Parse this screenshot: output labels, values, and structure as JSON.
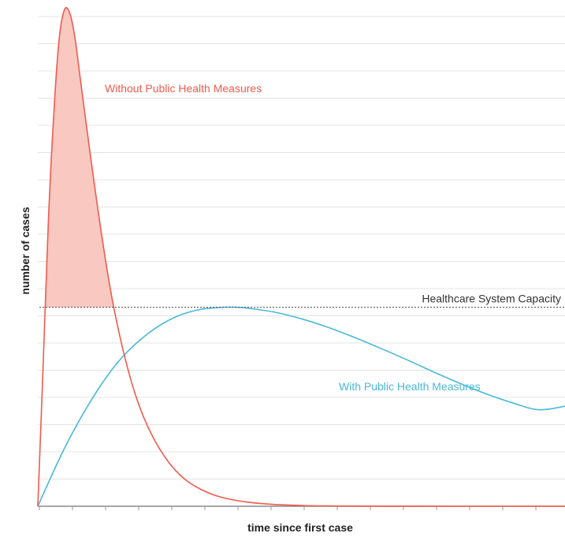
{
  "chart_data": {
    "type": "area",
    "xlabel": "time since first case",
    "ylabel": "number of cases",
    "xlim": [
      0,
      100
    ],
    "ylim": [
      0,
      100
    ],
    "grid": true,
    "capacity": {
      "label": "Healthcare System Capacity",
      "value": 39.8,
      "color": "#555555"
    },
    "series": [
      {
        "name": "Without Public Health Measures",
        "color": "#ee5b4e",
        "fill": "#f8c8c1",
        "x": [
          0,
          1,
          2,
          3,
          4,
          5,
          6,
          7,
          8,
          10,
          12,
          14,
          16,
          18,
          20,
          22,
          24,
          26,
          28,
          30,
          33,
          36,
          40,
          45,
          50,
          55,
          60,
          70,
          80,
          90,
          100
        ],
        "values": [
          0,
          28,
          57,
          78,
          93,
          99.2,
          98.8,
          94,
          86,
          70,
          55,
          42,
          32,
          24,
          18,
          13.5,
          10,
          7.3,
          5.3,
          3.9,
          2.4,
          1.5,
          0.8,
          0.35,
          0.15,
          0.06,
          0.03,
          0.01,
          0,
          0,
          0
        ]
      },
      {
        "name": "With Public Health Measures",
        "color": "#4ab8d8",
        "x": [
          0,
          5,
          10,
          15,
          20,
          25,
          30,
          35,
          38,
          40,
          45,
          50,
          55,
          60,
          65,
          70,
          75,
          80,
          85,
          90,
          95,
          100
        ],
        "values": [
          0,
          11.5,
          21,
          28.6,
          33.8,
          37.3,
          39.2,
          39.8,
          39.8,
          39.6,
          38.8,
          37.5,
          35.8,
          33.8,
          31.6,
          29.3,
          26.9,
          24.6,
          22.5,
          20.7,
          19.3,
          20
        ]
      }
    ]
  }
}
